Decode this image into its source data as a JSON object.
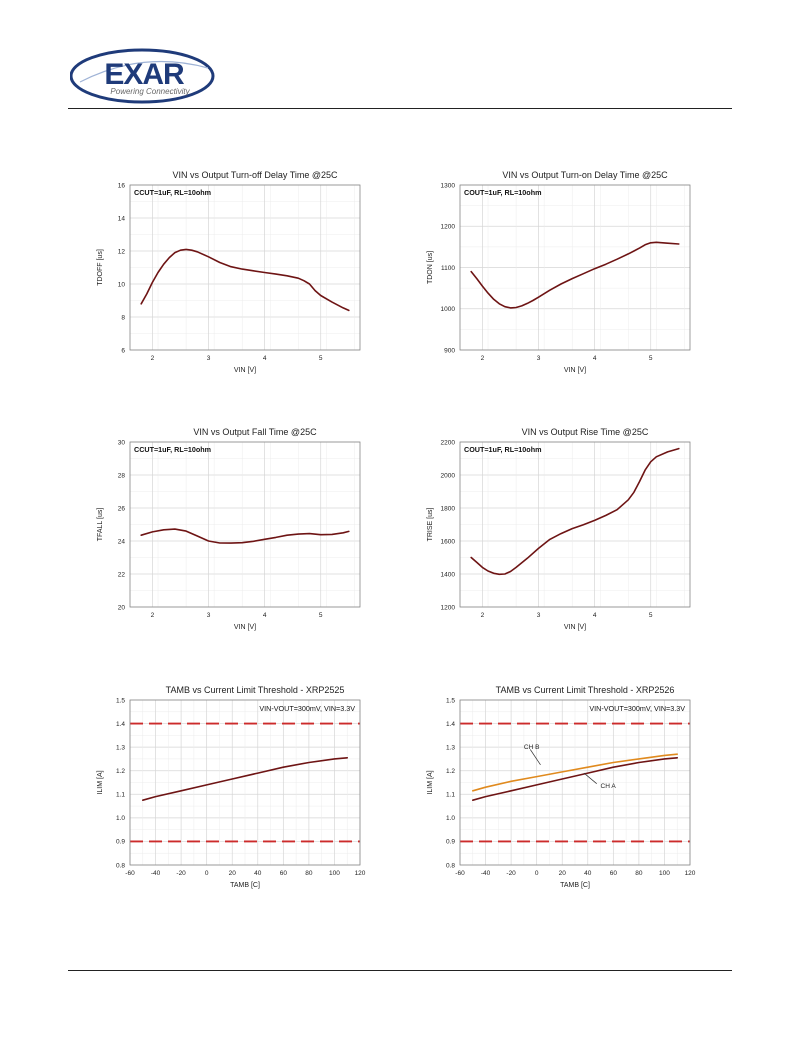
{
  "header": {
    "logo_text": "EXAR",
    "logo_tagline": "Powering Connectivity",
    "logo_color": "#1f3b7a"
  },
  "colors": {
    "chA": "#6e1414",
    "chB": "#e08a1e",
    "limit": "#cc2b2b",
    "grid": "#d6d6d6"
  },
  "charts": [
    {
      "title": "VIN vs Output Turn-off Delay Time @25C",
      "note": "CCUT=1uF, RL=10ohm",
      "xlabel": "VIN [V]",
      "ylabel": "TDOFF [us]"
    },
    {
      "title": "VIN vs Output Turn-on Delay Time @25C",
      "note": "COUT=1uF, RL=10ohm",
      "xlabel": "VIN [V]",
      "ylabel": "TDON [us]"
    },
    {
      "title": "VIN vs Output Fall Time @25C",
      "note": "CCUT=1uF, RL=10ohm",
      "xlabel": "VIN [V]",
      "ylabel": "TFALL [us]"
    },
    {
      "title": "VIN vs Output Rise Time @25C",
      "note": "COUT=1uF, RL=10ohm",
      "xlabel": "VIN [V]",
      "ylabel": "TRISE [us]"
    },
    {
      "title": "TAMB vs Current Limit Threshold - XRP2525",
      "note": "VIN-VOUT=300mV, VIN=3.3V",
      "xlabel": "TAMB [C]",
      "ylabel": "ILIM [A]"
    },
    {
      "title": "TAMB vs Current Limit Threshold - XRP2526",
      "note": "VIN-VOUT=300mV, VIN=3.3V",
      "xlabel": "TAMB [C]",
      "ylabel": "ILIM [A]",
      "labels": [
        "CH B",
        "CH A"
      ]
    }
  ],
  "chart_data": [
    {
      "type": "line",
      "title": "VIN vs Output Turn-off Delay Time @25C",
      "xlabel": "VIN [V]",
      "ylabel": "TDOFF [us]",
      "xlim": [
        1.6,
        5.7
      ],
      "ylim": [
        6,
        16
      ],
      "xticks": [
        2,
        3,
        4,
        5
      ],
      "yticks": [
        6,
        8,
        10,
        12,
        14,
        16
      ],
      "grid": true,
      "series": [
        {
          "x": [
            1.8,
            1.9,
            2.0,
            2.1,
            2.2,
            2.3,
            2.4,
            2.5,
            2.6,
            2.7,
            2.8,
            3.0,
            3.2,
            3.4,
            3.6,
            3.8,
            4.0,
            4.2,
            4.4,
            4.6,
            4.7,
            4.8,
            4.9,
            5.0,
            5.2,
            5.4,
            5.5
          ],
          "y": [
            8.8,
            9.4,
            10.1,
            10.7,
            11.2,
            11.6,
            11.9,
            12.05,
            12.1,
            12.05,
            11.95,
            11.65,
            11.3,
            11.05,
            10.9,
            10.8,
            10.7,
            10.6,
            10.5,
            10.35,
            10.2,
            10.0,
            9.6,
            9.3,
            8.9,
            8.55,
            8.4
          ]
        }
      ]
    },
    {
      "type": "line",
      "title": "VIN vs Output Turn-on Delay Time @25C",
      "xlabel": "VIN [V]",
      "ylabel": "TDON [us]",
      "xlim": [
        1.6,
        5.7
      ],
      "ylim": [
        900,
        1300
      ],
      "xticks": [
        2,
        3,
        4,
        5
      ],
      "yticks": [
        900,
        1000,
        1100,
        1200,
        1300
      ],
      "grid": true,
      "series": [
        {
          "x": [
            1.8,
            1.9,
            2.0,
            2.1,
            2.2,
            2.3,
            2.4,
            2.5,
            2.6,
            2.7,
            2.8,
            2.9,
            3.0,
            3.2,
            3.4,
            3.6,
            3.8,
            4.0,
            4.2,
            4.4,
            4.6,
            4.8,
            4.9,
            5.0,
            5.1,
            5.3,
            5.5
          ],
          "y": [
            1090,
            1073,
            1055,
            1038,
            1023,
            1012,
            1005,
            1002,
            1003,
            1007,
            1013,
            1020,
            1028,
            1045,
            1060,
            1073,
            1085,
            1097,
            1108,
            1120,
            1133,
            1147,
            1155,
            1160,
            1161,
            1159,
            1157
          ]
        }
      ]
    },
    {
      "type": "line",
      "title": "VIN vs Output Fall Time @25C",
      "xlabel": "VIN [V]",
      "ylabel": "TFALL [us]",
      "xlim": [
        1.6,
        5.7
      ],
      "ylim": [
        20,
        30
      ],
      "xticks": [
        2,
        3,
        4,
        5
      ],
      "yticks": [
        20,
        22,
        24,
        26,
        28,
        30
      ],
      "grid": true,
      "series": [
        {
          "x": [
            1.8,
            2.0,
            2.2,
            2.4,
            2.6,
            2.8,
            3.0,
            3.2,
            3.4,
            3.6,
            3.8,
            4.0,
            4.2,
            4.4,
            4.6,
            4.8,
            5.0,
            5.2,
            5.4,
            5.5
          ],
          "y": [
            24.35,
            24.55,
            24.68,
            24.72,
            24.6,
            24.3,
            24.0,
            23.88,
            23.87,
            23.9,
            23.98,
            24.1,
            24.22,
            24.35,
            24.42,
            24.45,
            24.38,
            24.4,
            24.5,
            24.58
          ]
        }
      ]
    },
    {
      "type": "line",
      "title": "VIN vs Output Rise Time @25C",
      "xlabel": "VIN [V]",
      "ylabel": "TRISE [us]",
      "xlim": [
        1.6,
        5.7
      ],
      "ylim": [
        1200,
        2200
      ],
      "xticks": [
        2,
        3,
        4,
        5
      ],
      "yticks": [
        1200,
        1400,
        1600,
        1800,
        2000,
        2200
      ],
      "grid": true,
      "series": [
        {
          "x": [
            1.8,
            1.9,
            2.0,
            2.1,
            2.2,
            2.3,
            2.4,
            2.5,
            2.6,
            2.8,
            3.0,
            3.2,
            3.4,
            3.6,
            3.8,
            4.0,
            4.2,
            4.4,
            4.6,
            4.7,
            4.8,
            4.9,
            5.0,
            5.1,
            5.3,
            5.5
          ],
          "y": [
            1500,
            1470,
            1440,
            1418,
            1404,
            1398,
            1400,
            1415,
            1440,
            1495,
            1555,
            1610,
            1645,
            1675,
            1698,
            1725,
            1755,
            1790,
            1850,
            1895,
            1960,
            2030,
            2080,
            2110,
            2140,
            2160
          ]
        }
      ]
    },
    {
      "type": "line",
      "title": "TAMB vs Current Limit Threshold - XRP2525",
      "xlabel": "TAMB [C]",
      "ylabel": "ILIM [A]",
      "xlim": [
        -60,
        120
      ],
      "ylim": [
        0.8,
        1.5
      ],
      "xticks": [
        -60,
        -40,
        -20,
        0,
        20,
        40,
        60,
        80,
        100,
        120
      ],
      "yticks": [
        0.8,
        0.9,
        1.0,
        1.1,
        1.2,
        1.3,
        1.4,
        1.5
      ],
      "grid": true,
      "limit_lines": [
        1.4,
        0.9
      ],
      "series": [
        {
          "x": [
            -50,
            -40,
            -20,
            0,
            20,
            40,
            60,
            80,
            100,
            110
          ],
          "y": [
            1.075,
            1.09,
            1.115,
            1.14,
            1.165,
            1.19,
            1.215,
            1.235,
            1.25,
            1.255
          ]
        }
      ]
    },
    {
      "type": "line",
      "title": "TAMB vs Current Limit Threshold - XRP2526",
      "xlabel": "TAMB [C]",
      "ylabel": "ILIM [A]",
      "xlim": [
        -60,
        120
      ],
      "ylim": [
        0.8,
        1.5
      ],
      "xticks": [
        -60,
        -40,
        -20,
        0,
        20,
        40,
        60,
        80,
        100,
        120
      ],
      "yticks": [
        0.8,
        0.9,
        1.0,
        1.1,
        1.2,
        1.3,
        1.4,
        1.5
      ],
      "grid": true,
      "limit_lines": [
        1.4,
        0.9
      ],
      "series": [
        {
          "name": "CH A",
          "x": [
            -50,
            -40,
            -20,
            0,
            20,
            40,
            60,
            80,
            100,
            110
          ],
          "y": [
            1.075,
            1.09,
            1.115,
            1.14,
            1.165,
            1.19,
            1.215,
            1.235,
            1.25,
            1.255
          ]
        },
        {
          "name": "CH B",
          "x": [
            -50,
            -40,
            -20,
            0,
            20,
            40,
            60,
            80,
            100,
            110
          ],
          "y": [
            1.115,
            1.13,
            1.155,
            1.175,
            1.195,
            1.215,
            1.235,
            1.25,
            1.265,
            1.27
          ]
        }
      ]
    }
  ]
}
